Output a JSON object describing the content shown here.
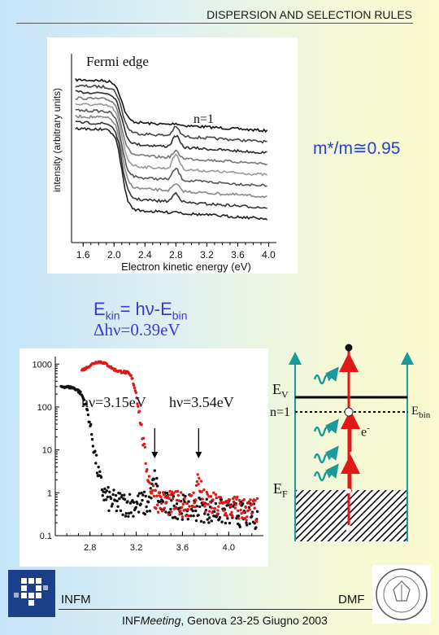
{
  "header": {
    "title": "DISPERSION AND SELECTION RULES"
  },
  "top_panel": {
    "fermi_label": "Fermi edge",
    "n1_label": "n=1",
    "mass_label": "m*/m≅0.95"
  },
  "formulas": {
    "ekin_prefix": "E",
    "ekin_sub": "kin",
    "ekin_mid": "= hν-E",
    "ekin_sub2": "bin",
    "dhv": "Δhν=0.39eV"
  },
  "bottom_panel": {
    "hv1_label": "hν=3.15eV",
    "hv2_label": "hν=3.54eV"
  },
  "diagram": {
    "ev_main": "E",
    "ev_sub": "V",
    "n1_label": "n=1",
    "ebin_main": "E",
    "ebin_sub": "bin",
    "eminus_main": "e",
    "eminus_sup": "-",
    "ef_main": "E",
    "ef_sub": "F"
  },
  "footer": {
    "infm": "INFM",
    "dmf": "DMF",
    "meeting_prefix": "INF",
    "meeting_italic": "Meeting",
    "meeting_rest": ", Genova 23-25 Giugno 2003"
  },
  "colors": {
    "blue_text": "#3a3ad8",
    "red_series": "#e01818",
    "teal_arrow": "#1a9a9a",
    "arrow_red": "#e01818"
  },
  "chart_data": [
    {
      "type": "line",
      "title": "",
      "xlabel": "Electron kinetic energy (eV)",
      "ylabel": "intensity (arbitrary units)",
      "xlim": [
        1.45,
        4.1
      ],
      "xticks": [
        "1.6",
        "2.0",
        "2.4",
        "2.8",
        "3.2",
        "3.6",
        "4.0"
      ],
      "xtick_values": [
        1.6,
        2.0,
        2.4,
        2.8,
        3.2,
        3.6,
        4.0
      ],
      "series_count": 9,
      "edge_position_eV": 2.1,
      "peak_position_eV": 2.8,
      "series_gray_levels": [
        "#111111",
        "#444444",
        "#2a2a2a",
        "#777777",
        "#999999",
        "#555555",
        "#888888",
        "#333333",
        "#222222"
      ]
    },
    {
      "type": "scatter",
      "title": "",
      "xlabel": "",
      "ylabel": "",
      "yscale": "log",
      "xlim": [
        2.5,
        4.3
      ],
      "ylim": [
        0.1,
        1500
      ],
      "xticks": [
        "2.8",
        "3.2",
        "3.6",
        "4.0"
      ],
      "xtick_values": [
        2.8,
        3.2,
        3.6,
        4.0
      ],
      "yticks": [
        "0.1",
        "1",
        "10",
        "100",
        "1000"
      ],
      "ytick_values": [
        0.1,
        1,
        10,
        100,
        1000
      ],
      "series": [
        {
          "color": "#111111",
          "hv": "3.15",
          "plateau": 300,
          "edge": 2.83,
          "peak": 3.36,
          "floor": 0.55
        },
        {
          "color": "#e01818",
          "hv": "3.54",
          "plateau": 900,
          "edge": 3.25,
          "peak": 3.74,
          "floor": 0.55
        }
      ],
      "arrows_at": [
        3.36,
        3.74
      ]
    }
  ]
}
